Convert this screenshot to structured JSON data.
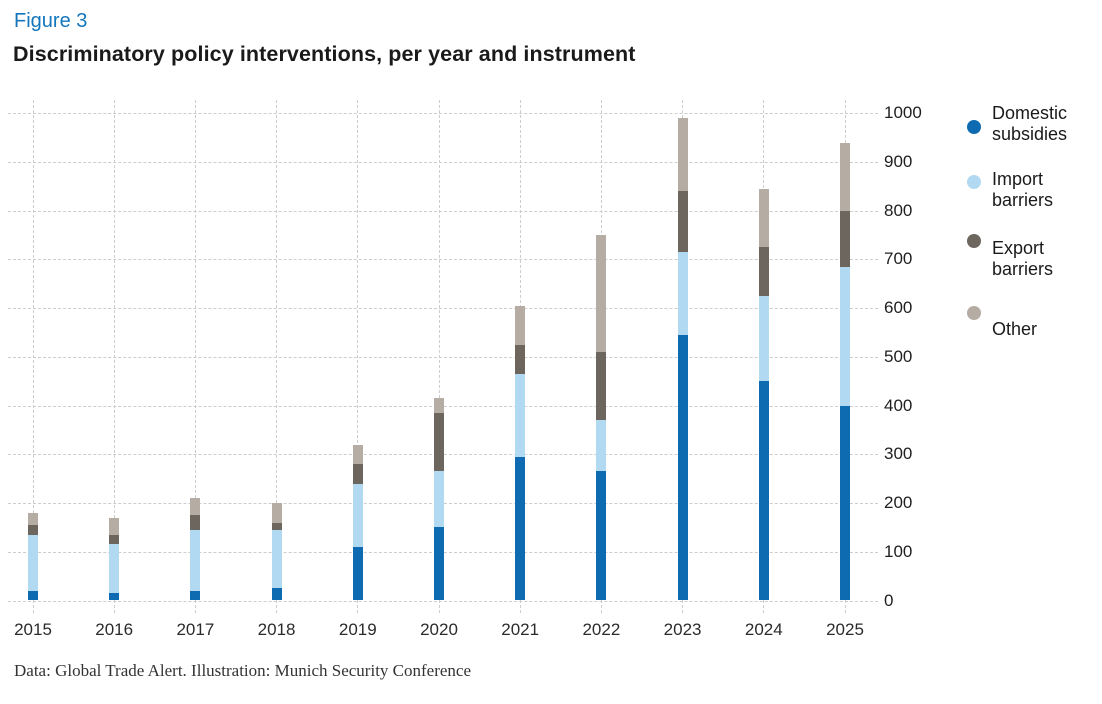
{
  "header": {
    "figure_label": "Figure 3",
    "title": "Discriminatory policy interventions, per year and instrument"
  },
  "footer": {
    "credit": "Data: Global Trade Alert. Illustration: Munich Security Conference"
  },
  "colors": {
    "figure_label_blue": "#1477bd",
    "title_text": "#1a1a1a",
    "gridline": "#cdcdcd",
    "axis_text": "#2b2b2b",
    "footer_text": "#333333",
    "background": "#ffffff"
  },
  "chart_data": {
    "type": "bar",
    "stacked": true,
    "title": "Discriminatory policy interventions, per year and instrument",
    "categories": [
      "2015",
      "2016",
      "2017",
      "2018",
      "2019",
      "2020",
      "2021",
      "2022",
      "2023",
      "2024",
      "2025"
    ],
    "series": [
      {
        "name": "Domestic subsidies",
        "color": "#0e6bb1",
        "values": [
          20,
          15,
          20,
          25,
          110,
          150,
          295,
          265,
          545,
          450,
          400
        ]
      },
      {
        "name": "Import barriers",
        "color": "#b2d9f2",
        "values": [
          115,
          100,
          125,
          120,
          130,
          115,
          170,
          105,
          170,
          175,
          285
        ]
      },
      {
        "name": "Export barriers",
        "color": "#6d665f",
        "values": [
          20,
          20,
          30,
          15,
          40,
          120,
          60,
          140,
          125,
          100,
          115
        ]
      },
      {
        "name": "Other",
        "color": "#b5aca3",
        "values": [
          25,
          35,
          35,
          40,
          40,
          30,
          80,
          240,
          150,
          120,
          140
        ]
      }
    ],
    "totals": [
      180,
      170,
      210,
      200,
      320,
      415,
      605,
      750,
      990,
      845,
      940
    ],
    "xlabel": "",
    "ylabel": "",
    "ylim": [
      0,
      1000
    ],
    "yticks": [
      0,
      100,
      200,
      300,
      400,
      500,
      600,
      700,
      800,
      900,
      1000
    ],
    "grid": true,
    "y_axis_side": "right",
    "legend_position": "right"
  }
}
